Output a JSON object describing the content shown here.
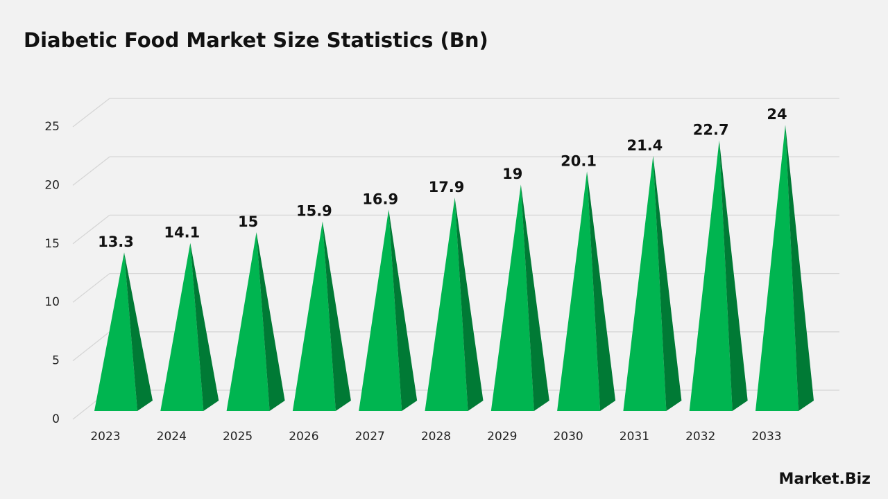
{
  "chart_data": {
    "type": "pyramid",
    "title": "Diabetic Food Market Size Statistics (Bn)",
    "categories": [
      "2023",
      "2024",
      "2025",
      "2026",
      "2027",
      "2028",
      "2029",
      "2030",
      "2031",
      "2032",
      "2033"
    ],
    "values": [
      13.3,
      14.1,
      15,
      15.9,
      16.9,
      17.9,
      19,
      20.1,
      21.4,
      22.7,
      24
    ],
    "color": "#00b550",
    "side_color": "#007a35",
    "ylim": [
      0,
      25
    ],
    "yticks": [
      0,
      5,
      10,
      15,
      20,
      25
    ],
    "grid": true
  },
  "brand": "Market.Biz"
}
